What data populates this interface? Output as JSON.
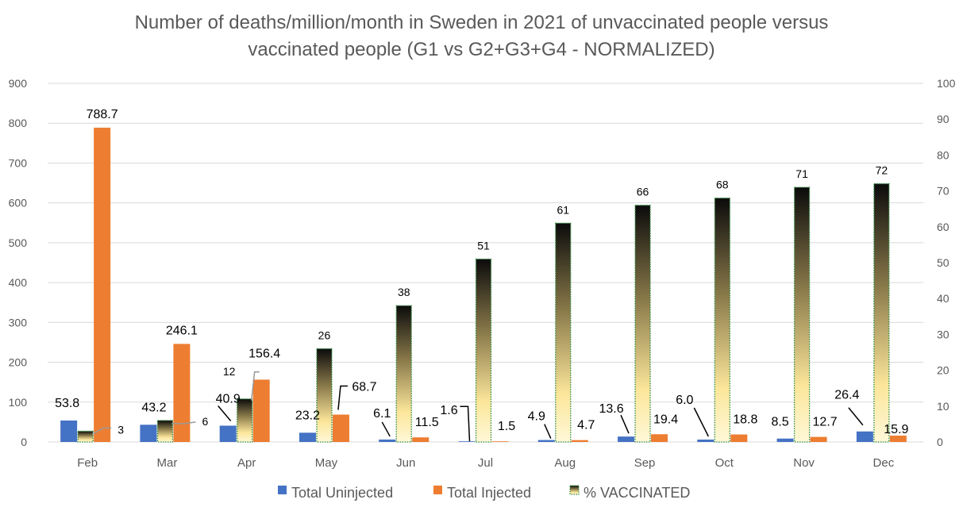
{
  "chart_data": {
    "type": "bar",
    "title_line1": "Number of deaths/million/month in Sweden in 2021 of unvaccinated people versus",
    "title_line2": "vaccinated people (G1 vs G2+G3+G4 - NORMALIZED)",
    "categories": [
      "Feb",
      "Mar",
      "Apr",
      "May",
      "Jun",
      "Jul",
      "Aug",
      "Sep",
      "Oct",
      "Nov",
      "Dec"
    ],
    "y_left": {
      "min": 0,
      "max": 900,
      "ticks": [
        "0",
        "100",
        "200",
        "300",
        "400",
        "500",
        "600",
        "700",
        "800",
        "900"
      ]
    },
    "y_right": {
      "min": 0,
      "max": 100,
      "ticks": [
        "0",
        "10",
        "20",
        "30",
        "40",
        "50",
        "60",
        "70",
        "80",
        "90",
        "100"
      ]
    },
    "grid": true,
    "legend_position": "bottom",
    "series": [
      {
        "name": "Total Uninjected",
        "axis": "left",
        "color": "#4472C4",
        "values": [
          53.8,
          43.2,
          40.9,
          23.2,
          6.1,
          1.6,
          4.9,
          13.6,
          6.0,
          8.5,
          26.4
        ],
        "labels": [
          "53.8",
          "43.2",
          "40.9",
          "23.2",
          "6.1",
          "1.6",
          "4.9",
          "13.6",
          "6.0",
          "8.5",
          "26.4"
        ]
      },
      {
        "name": "Total Injected",
        "axis": "left",
        "color": "#ED7D31",
        "values": [
          788.7,
          246.1,
          156.4,
          68.7,
          11.5,
          1.5,
          4.7,
          19.4,
          18.8,
          12.7,
          15.9
        ],
        "labels": [
          "788.7",
          "246.1",
          "156.4",
          "68.7",
          "11.5",
          "1.5",
          "4.7",
          "19.4",
          "18.8",
          "12.7",
          "15.9"
        ]
      },
      {
        "name": "% VACCINATED",
        "axis": "right",
        "color": "#1a1a1a",
        "gradient": [
          "#0b0b0b",
          "#8a7a4a",
          "#fbe69a",
          "#fff8d8"
        ],
        "border": "#2e8b3e",
        "values": [
          3,
          6,
          12,
          26,
          38,
          51,
          61,
          66,
          68,
          71,
          72
        ],
        "labels": [
          "3",
          "6",
          "12",
          "26",
          "38",
          "51",
          "61",
          "66",
          "68",
          "71",
          "72"
        ]
      }
    ]
  }
}
